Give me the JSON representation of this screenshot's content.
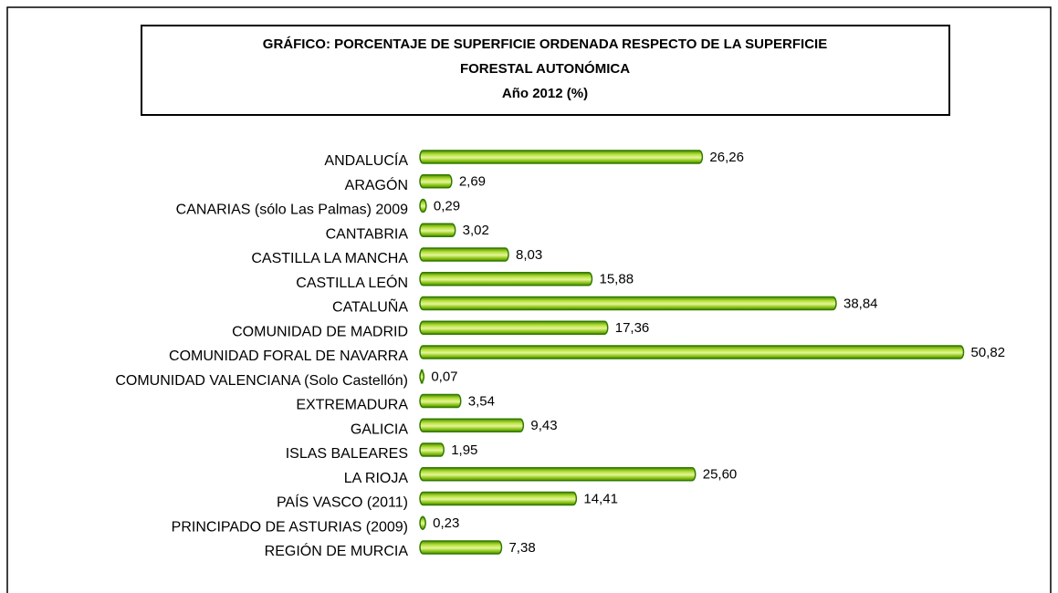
{
  "chart_data": {
    "type": "bar",
    "orientation": "horizontal",
    "title": [
      "GRÁFICO: PORCENTAJE DE SUPERFICIE ORDENADA RESPECTO DE LA SUPERFICIE",
      "FORESTAL AUTONÓMICA"
    ],
    "subtitle": "Año 2012 (%)",
    "color": "#7fb800",
    "categories": [
      "ANDALUCÍA",
      "ARAGÓN",
      "CANARIAS (sólo Las Palmas) 2009",
      "CANTABRIA",
      "CASTILLA LA MANCHA",
      "CASTILLA LEÓN",
      "CATALUÑA",
      "COMUNIDAD DE MADRID",
      "COMUNIDAD FORAL DE NAVARRA",
      "COMUNIDAD VALENCIANA (Solo Castellón)",
      "EXTREMADURA",
      "GALICIA",
      "ISLAS BALEARES",
      "LA RIOJA",
      "PAÍS VASCO (2011)",
      "PRINCIPADO DE ASTURIAS (2009)",
      "REGIÓN DE MURCIA"
    ],
    "values": [
      26.26,
      2.69,
      0.29,
      3.02,
      8.03,
      15.88,
      38.84,
      17.36,
      50.82,
      0.07,
      3.54,
      9.43,
      1.95,
      25.6,
      14.41,
      0.23,
      7.38
    ],
    "value_labels": [
      "26,26",
      "2,69",
      "0,29",
      "3,02",
      "8,03",
      "15,88",
      "38,84",
      "17,36",
      "50,82",
      "0,07",
      "3,54",
      "9,43",
      "1,95",
      "25,60",
      "14,41",
      "0,23",
      "7,38"
    ]
  }
}
